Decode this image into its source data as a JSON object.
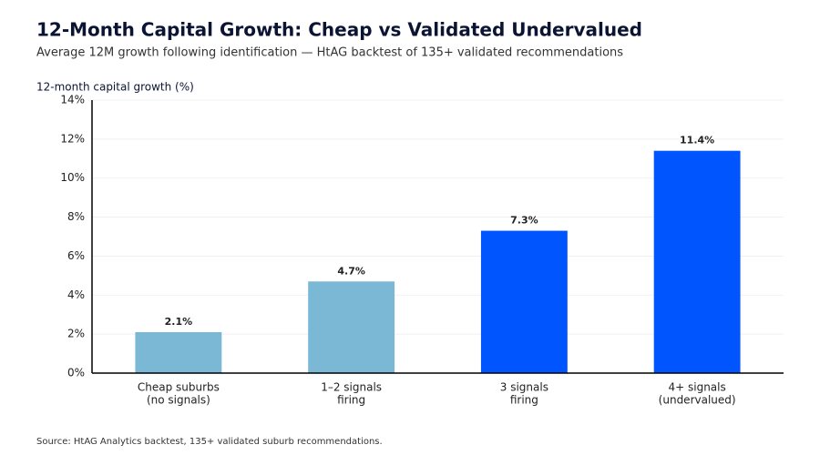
{
  "chart_data": {
    "type": "bar",
    "title": "12-Month Capital Growth: Cheap vs Validated Undervalued",
    "subtitle": "Average 12M growth following identification — HtAG backtest of 135+ validated recommendations",
    "y_label": "12-month capital growth (%)",
    "source": "Source: HtAG Analytics backtest, 135+ validated suburb recommendations.",
    "categories": [
      [
        "Cheap suburbs",
        "(no signals)"
      ],
      [
        "1–2 signals",
        "firing"
      ],
      [
        "3 signals",
        "firing"
      ],
      [
        "4+ signals",
        "(undervalued)"
      ]
    ],
    "values": [
      2.1,
      4.7,
      7.3,
      11.4
    ],
    "value_labels": [
      "2.1%",
      "4.7%",
      "7.3%",
      "11.4%"
    ],
    "colors": [
      "#7ab8d6",
      "#7ab8d6",
      "#0055ff",
      "#0055ff"
    ],
    "ylim": [
      0,
      14
    ],
    "yticks": [
      {
        "value": 0,
        "label": "0%"
      },
      {
        "value": 2,
        "label": "2%"
      },
      {
        "value": 4,
        "label": "4%"
      },
      {
        "value": 6,
        "label": "6%"
      },
      {
        "value": 8,
        "label": "8%"
      },
      {
        "value": 10,
        "label": "10%"
      },
      {
        "value": 12,
        "label": "12%"
      },
      {
        "value": 14,
        "label": "14%"
      }
    ],
    "grid": true
  }
}
